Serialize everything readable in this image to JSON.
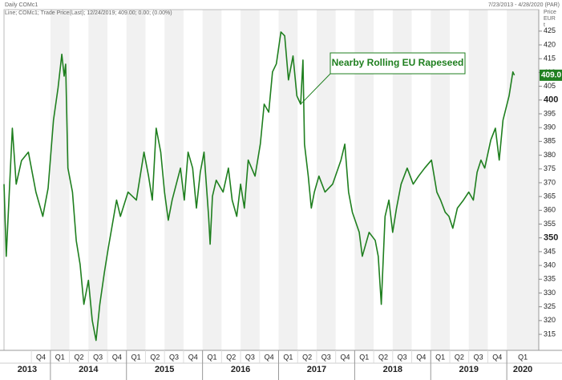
{
  "chart_data": {
    "type": "line",
    "title": "Daily COMc1",
    "subtitle": "Line; COMc1; Trade Price(Last); 12/24/2019; 409.00; 0.00; (0.00%)",
    "date_range": "7/23/2013 - 4/28/2020 (PAR)",
    "y_label": [
      "Price",
      "EUR",
      "t"
    ],
    "annotation": "Nearby Rolling EU Rapeseed",
    "last_price": {
      "value": 409,
      "label": "409.0"
    },
    "color": "#1f7f1f",
    "x": [
      2013.39,
      2013.42,
      2013.5,
      2013.55,
      2013.62,
      2013.71,
      2013.81,
      2013.9,
      2013.97,
      2014.04,
      2014.1,
      2014.15,
      2014.18,
      2014.2,
      2014.23,
      2014.29,
      2014.34,
      2014.39,
      2014.44,
      2014.5,
      2014.55,
      2014.6,
      2014.65,
      2014.71,
      2014.76,
      2014.87,
      2014.92,
      2015.02,
      2015.13,
      2015.23,
      2015.29,
      2015.34,
      2015.39,
      2015.45,
      2015.5,
      2015.55,
      2015.6,
      2015.71,
      2015.76,
      2015.81,
      2015.87,
      2015.92,
      2015.97,
      2016.02,
      2016.08,
      2016.1,
      2016.13,
      2016.18,
      2016.27,
      2016.34,
      2016.39,
      2016.45,
      2016.5,
      2016.55,
      2016.6,
      2016.69,
      2016.76,
      2016.81,
      2016.87,
      2016.92,
      2016.97,
      2017.03,
      2017.08,
      2017.13,
      2017.19,
      2017.24,
      2017.29,
      2017.32,
      2017.34,
      2017.39,
      2017.43,
      2017.47,
      2017.53,
      2017.61,
      2017.71,
      2017.82,
      2017.87,
      2017.92,
      2017.97,
      2018.06,
      2018.1,
      2018.19,
      2018.27,
      2018.31,
      2018.35,
      2018.4,
      2018.45,
      2018.5,
      2018.55,
      2018.61,
      2018.69,
      2018.77,
      2018.84,
      2018.92,
      2019.01,
      2019.08,
      2019.13,
      2019.19,
      2019.24,
      2019.29,
      2019.35,
      2019.43,
      2019.5,
      2019.56,
      2019.61,
      2019.66,
      2019.71,
      2019.79,
      2019.85,
      2019.9,
      2019.95,
      2020.03,
      2020.08,
      2020.1
    ],
    "values": [
      369.5,
      343.3,
      389.8,
      369.5,
      378,
      381.1,
      366.6,
      357.8,
      368,
      392.7,
      404.4,
      416.6,
      408.7,
      413,
      375.3,
      366.6,
      349,
      340.4,
      325.9,
      334.6,
      320,
      312.8,
      325.9,
      337.5,
      346.2,
      363.7,
      357.8,
      366.6,
      363.7,
      381.1,
      372.4,
      363.7,
      389.8,
      381.1,
      366.6,
      356.4,
      363.7,
      375.3,
      363.7,
      381.1,
      375.3,
      360.8,
      373.8,
      381.1,
      357.8,
      347.7,
      365.1,
      370.9,
      366.6,
      375.3,
      363.7,
      357.8,
      369.5,
      360.8,
      378.2,
      372.4,
      384,
      398.5,
      395.6,
      410.2,
      413.1,
      424.7,
      423.3,
      407.3,
      416,
      401.5,
      398.5,
      414.5,
      384,
      372.4,
      360.8,
      366.6,
      372.4,
      366.6,
      369.5,
      378.2,
      384,
      366.6,
      359.3,
      352,
      343.3,
      352,
      349.1,
      343.3,
      325.9,
      357.8,
      363.7,
      352,
      360.8,
      369.5,
      375.3,
      369.5,
      372.4,
      375.3,
      378.2,
      366.6,
      363.7,
      359.3,
      357.8,
      353.5,
      360.8,
      363.7,
      366.6,
      363.7,
      373.8,
      378.2,
      375.3,
      385.5,
      389.8,
      378.2,
      392.7,
      401.5,
      410.2,
      409
    ],
    "xlim": [
      2013.39,
      2020.42
    ],
    "ylim": [
      309.2,
      432.8
    ],
    "yticks": [
      315,
      320,
      325,
      330,
      335,
      340,
      345,
      350,
      355,
      360,
      365,
      370,
      375,
      380,
      385,
      390,
      395,
      400,
      405,
      410,
      415,
      420,
      425
    ],
    "bold_yticks": [
      350,
      400
    ],
    "xticks": [
      {
        "value": 2013.75,
        "label": "Q4"
      },
      {
        "value": 2014.0,
        "label": "Q1"
      },
      {
        "value": 2014.25,
        "label": "Q2"
      },
      {
        "value": 2014.5,
        "label": "Q3"
      },
      {
        "value": 2014.75,
        "label": "Q4"
      },
      {
        "value": 2015.0,
        "label": "Q1"
      },
      {
        "value": 2015.25,
        "label": "Q2"
      },
      {
        "value": 2015.5,
        "label": "Q3"
      },
      {
        "value": 2015.75,
        "label": "Q4"
      },
      {
        "value": 2016.0,
        "label": "Q1"
      },
      {
        "value": 2016.25,
        "label": "Q2"
      },
      {
        "value": 2016.5,
        "label": "Q3"
      },
      {
        "value": 2016.75,
        "label": "Q4"
      },
      {
        "value": 2017.0,
        "label": "Q1"
      },
      {
        "value": 2017.25,
        "label": "Q2"
      },
      {
        "value": 2017.5,
        "label": "Q3"
      },
      {
        "value": 2017.75,
        "label": "Q4"
      },
      {
        "value": 2018.0,
        "label": "Q1"
      },
      {
        "value": 2018.25,
        "label": "Q2"
      },
      {
        "value": 2018.5,
        "label": "Q3"
      },
      {
        "value": 2018.75,
        "label": "Q4"
      },
      {
        "value": 2019.0,
        "label": "Q1"
      },
      {
        "value": 2019.25,
        "label": "Q2"
      },
      {
        "value": 2019.5,
        "label": "Q3"
      },
      {
        "value": 2019.75,
        "label": "Q4"
      },
      {
        "value": 2020.0,
        "label": "Q1"
      }
    ],
    "year_ticks": [
      {
        "value": 2013,
        "label": "2013"
      },
      {
        "value": 2014,
        "label": "2014"
      },
      {
        "value": 2015,
        "label": "2015"
      },
      {
        "value": 2016,
        "label": "2016"
      },
      {
        "value": 2017,
        "label": "2017"
      },
      {
        "value": 2018,
        "label": "2018"
      },
      {
        "value": 2019,
        "label": "2019"
      },
      {
        "value": 2020,
        "label": "2020"
      }
    ]
  }
}
